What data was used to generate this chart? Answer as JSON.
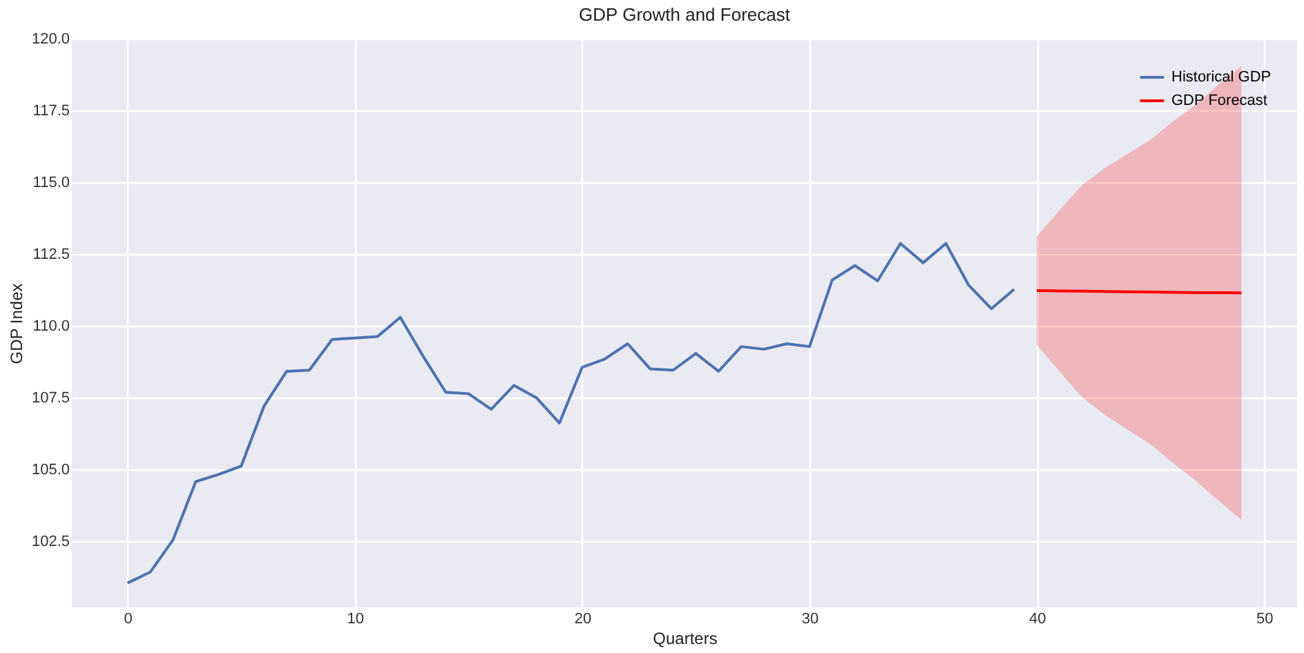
{
  "chart_data": {
    "type": "line",
    "title": "GDP Growth and Forecast",
    "xlabel": "Quarters",
    "ylabel": "GDP Index",
    "series": [
      {
        "name": "Historical GDP",
        "color": "#4c72b0",
        "x": [
          0,
          1,
          2,
          3,
          4,
          5,
          6,
          7,
          8,
          9,
          10,
          11,
          12,
          13,
          14,
          15,
          16,
          17,
          18,
          19,
          20,
          21,
          22,
          23,
          24,
          25,
          26,
          27,
          28,
          29,
          30,
          31,
          32,
          33,
          34,
          35,
          36,
          37,
          38,
          39
        ],
        "values": [
          101.05,
          101.43,
          102.55,
          104.58,
          104.83,
          105.12,
          107.2,
          108.42,
          108.46,
          109.53,
          109.58,
          109.63,
          110.3,
          108.95,
          107.69,
          107.64,
          107.1,
          107.93,
          107.49,
          106.62,
          108.56,
          108.85,
          109.38,
          108.5,
          108.46,
          109.04,
          108.42,
          109.28,
          109.19,
          109.38,
          109.28,
          111.6,
          112.1,
          111.57,
          112.87,
          112.2,
          112.87,
          111.42,
          110.6,
          111.27
        ]
      },
      {
        "name": "GDP Forecast",
        "color": "#ff0000",
        "x": [
          40,
          41,
          42,
          43,
          44,
          45,
          46,
          47,
          48,
          49
        ],
        "values": [
          111.23,
          111.22,
          111.21,
          111.2,
          111.19,
          111.18,
          111.17,
          111.16,
          111.16,
          111.15
        ],
        "lower": [
          109.33,
          108.42,
          107.51,
          106.9,
          106.39,
          105.88,
          105.22,
          104.61,
          103.91,
          103.25
        ],
        "upper": [
          113.13,
          114.02,
          114.91,
          115.5,
          115.99,
          116.48,
          117.12,
          117.71,
          118.41,
          119.05
        ]
      }
    ],
    "xlim": [
      -2.45,
      51.45
    ],
    "xticks": [
      0,
      10,
      20,
      30,
      40,
      50
    ],
    "ylim": [
      100.2,
      120
    ],
    "yticks": [
      102.5,
      {
        "value": 105,
        "label": "105.0"
      },
      107.5,
      {
        "value": 110,
        "label": "110.0"
      },
      112.5,
      {
        "value": 115,
        "label": "115.0"
      },
      117.5,
      {
        "value": 120,
        "label": "120.0"
      }
    ],
    "grid": true,
    "legend": "top right",
    "line_style": "solid",
    "marker": "none"
  }
}
